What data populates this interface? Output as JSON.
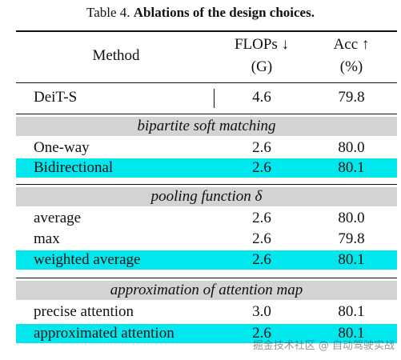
{
  "caption": {
    "prefix": "Table 4.",
    "title": "Ablations of the design choices."
  },
  "header": {
    "method": "Method",
    "flops_line1": "FLOPs ↓",
    "flops_line2": "(G)",
    "acc_line1": "Acc ↑",
    "acc_line2": "(%)"
  },
  "baseline": {
    "method": "DeiT-S",
    "flops": "4.6",
    "acc": "79.8"
  },
  "sections": [
    {
      "title": "bipartite soft matching",
      "rows": [
        {
          "method": "One-way",
          "flops": "2.6",
          "acc": "80.0",
          "highlight": false
        },
        {
          "method": "Bidirectional",
          "flops": "2.6",
          "acc": "80.1",
          "highlight": true
        }
      ]
    },
    {
      "title": "pooling function δ",
      "rows": [
        {
          "method": "average",
          "flops": "2.6",
          "acc": "80.0",
          "highlight": false
        },
        {
          "method": "max",
          "flops": "2.6",
          "acc": "79.8",
          "highlight": false
        },
        {
          "method": "weighted average",
          "flops": "2.6",
          "acc": "80.1",
          "highlight": true
        }
      ]
    },
    {
      "title": "approximation of attention map",
      "rows": [
        {
          "method": "precise attention",
          "flops": "3.0",
          "acc": "80.1",
          "highlight": false
        },
        {
          "method": "approximated attention",
          "flops": "2.6",
          "acc": "80.1",
          "highlight": true
        }
      ]
    }
  ],
  "colors": {
    "highlight": "#00e7ee",
    "section_band": "#d3d3d3"
  },
  "watermark": "掘金技术社区 @ 自动驾驶实战"
}
